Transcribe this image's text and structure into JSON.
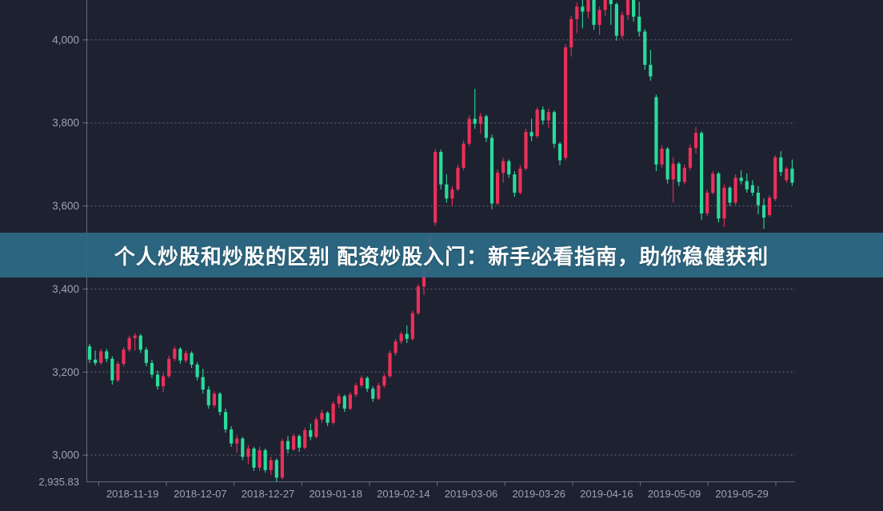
{
  "banner": {
    "title": "个人炒股和炒股的区别 配资炒股入门：新手必看指南，助你稳健获利"
  },
  "colors": {
    "background": "#1e2130",
    "banner_background": "#2d6a85",
    "bull_red": "#ea3059",
    "bear_green": "#2bdb9b",
    "grid_line": "#c6cde0",
    "axis_line": "#aab2c8",
    "axis_label": "#9aa3b8"
  },
  "chart_data": {
    "type": "candlestick",
    "title": "",
    "color_convention": "red = close above open (up), green = close below open (down)",
    "grid": "horizontal-dashed",
    "legend": "none",
    "ylim": [
      2935.83,
      4096
    ],
    "y_axis_ticks": [
      {
        "value": 4000,
        "label": "4,000"
      },
      {
        "value": 3800,
        "label": "3,800"
      },
      {
        "value": 3600,
        "label": "3,600"
      },
      {
        "value": 3400,
        "label": "3,400"
      },
      {
        "value": 3200,
        "label": "3,200"
      },
      {
        "value": 3000,
        "label": "3,000"
      }
    ],
    "y_axis_min_label": {
      "value": 2935.83,
      "label": "2,935.83"
    },
    "x_axis_labels": [
      "2018-11-19",
      "2018-12-07",
      "2018-12-27",
      "2019-01-18",
      "2019-02-14",
      "2019-03-06",
      "2019-03-26",
      "2019-04-16",
      "2019-05-09",
      "2019-05-29"
    ],
    "candles_ohlc": [
      [
        3262,
        3268,
        3222,
        3230
      ],
      [
        3230,
        3252,
        3216,
        3222
      ],
      [
        3222,
        3256,
        3218,
        3250
      ],
      [
        3250,
        3256,
        3224,
        3232
      ],
      [
        3232,
        3238,
        3170,
        3180
      ],
      [
        3180,
        3226,
        3176,
        3220
      ],
      [
        3220,
        3260,
        3214,
        3254
      ],
      [
        3254,
        3288,
        3248,
        3282
      ],
      [
        3282,
        3294,
        3252,
        3288
      ],
      [
        3288,
        3292,
        3246,
        3254
      ],
      [
        3254,
        3260,
        3214,
        3222
      ],
      [
        3222,
        3230,
        3186,
        3194
      ],
      [
        3194,
        3204,
        3158,
        3166
      ],
      [
        3166,
        3198,
        3152,
        3190
      ],
      [
        3190,
        3240,
        3186,
        3232
      ],
      [
        3232,
        3262,
        3226,
        3256
      ],
      [
        3256,
        3260,
        3220,
        3228
      ],
      [
        3228,
        3252,
        3222,
        3246
      ],
      [
        3246,
        3250,
        3210,
        3218
      ],
      [
        3218,
        3224,
        3180,
        3188
      ],
      [
        3188,
        3208,
        3148,
        3158
      ],
      [
        3158,
        3166,
        3112,
        3120
      ],
      [
        3120,
        3154,
        3114,
        3148
      ],
      [
        3148,
        3152,
        3096,
        3104
      ],
      [
        3104,
        3112,
        3054,
        3062
      ],
      [
        3062,
        3070,
        3020,
        3028
      ],
      [
        3028,
        3048,
        3006,
        3040
      ],
      [
        3040,
        3044,
        2988,
        2996
      ],
      [
        2996,
        3024,
        2978,
        3016
      ],
      [
        3016,
        3020,
        2962,
        2970
      ],
      [
        2970,
        3020,
        2962,
        3012
      ],
      [
        3012,
        3016,
        2958,
        2964
      ],
      [
        2964,
        2996,
        2952,
        2988
      ],
      [
        2988,
        2992,
        2936,
        2946
      ],
      [
        2946,
        3040,
        2942,
        3034
      ],
      [
        3034,
        3046,
        3004,
        3014
      ],
      [
        3014,
        3052,
        3010,
        3046
      ],
      [
        3046,
        3050,
        3008,
        3018
      ],
      [
        3018,
        3066,
        3014,
        3060
      ],
      [
        3060,
        3076,
        3036,
        3044
      ],
      [
        3044,
        3092,
        3040,
        3086
      ],
      [
        3086,
        3110,
        3078,
        3102
      ],
      [
        3102,
        3106,
        3070,
        3078
      ],
      [
        3078,
        3130,
        3074,
        3124
      ],
      [
        3124,
        3148,
        3114,
        3142
      ],
      [
        3142,
        3146,
        3104,
        3112
      ],
      [
        3112,
        3152,
        3108,
        3146
      ],
      [
        3146,
        3174,
        3140,
        3168
      ],
      [
        3168,
        3192,
        3162,
        3186
      ],
      [
        3186,
        3190,
        3152,
        3160
      ],
      [
        3160,
        3166,
        3128,
        3136
      ],
      [
        3136,
        3174,
        3132,
        3168
      ],
      [
        3168,
        3196,
        3162,
        3190
      ],
      [
        3190,
        3252,
        3186,
        3246
      ],
      [
        3246,
        3280,
        3240,
        3274
      ],
      [
        3274,
        3298,
        3268,
        3292
      ],
      [
        3292,
        3312,
        3270,
        3280
      ],
      [
        3280,
        3348,
        3276,
        3342
      ],
      [
        3342,
        3412,
        3338,
        3406
      ],
      [
        3406,
        3452,
        3386,
        3444
      ],
      [
        3444,
        3530,
        3440,
        3524
      ],
      [
        3560,
        3738,
        3552,
        3730
      ],
      [
        3730,
        3736,
        3640,
        3652
      ],
      [
        3652,
        3676,
        3608,
        3618
      ],
      [
        3618,
        3648,
        3600,
        3640
      ],
      [
        3640,
        3700,
        3636,
        3692
      ],
      [
        3692,
        3758,
        3686,
        3750
      ],
      [
        3750,
        3818,
        3744,
        3810
      ],
      [
        3810,
        3882,
        3786,
        3798
      ],
      [
        3798,
        3824,
        3774,
        3816
      ],
      [
        3816,
        3820,
        3754,
        3764
      ],
      [
        3764,
        3772,
        3592,
        3606
      ],
      [
        3606,
        3688,
        3602,
        3680
      ],
      [
        3680,
        3716,
        3656,
        3708
      ],
      [
        3708,
        3712,
        3668,
        3676
      ],
      [
        3676,
        3684,
        3622,
        3632
      ],
      [
        3632,
        3698,
        3628,
        3690
      ],
      [
        3690,
        3786,
        3686,
        3778
      ],
      [
        3778,
        3810,
        3756,
        3768
      ],
      [
        3768,
        3838,
        3764,
        3832
      ],
      [
        3832,
        3840,
        3796,
        3806
      ],
      [
        3806,
        3834,
        3788,
        3826
      ],
      [
        3826,
        3830,
        3740,
        3750
      ],
      [
        3750,
        3754,
        3698,
        3710
      ],
      [
        3716,
        3990,
        3710,
        3982
      ],
      [
        3982,
        4058,
        3960,
        4050
      ],
      [
        4050,
        4090,
        4016,
        4080
      ],
      [
        4080,
        4098,
        4028,
        4068
      ],
      [
        4068,
        4112,
        4052,
        4104
      ],
      [
        4104,
        4110,
        4024,
        4036
      ],
      [
        4036,
        4080,
        4012,
        4072
      ],
      [
        4072,
        4108,
        4058,
        4100
      ],
      [
        4100,
        4112,
        4036,
        4086
      ],
      [
        4086,
        4090,
        3998,
        4010
      ],
      [
        4010,
        4068,
        4002,
        4060
      ],
      [
        4060,
        4108,
        4048,
        4098
      ],
      [
        4098,
        4112,
        4044,
        4056
      ],
      [
        4056,
        4092,
        4008,
        4020
      ],
      [
        4020,
        4026,
        3928,
        3940
      ],
      [
        3940,
        3976,
        3902,
        3912
      ],
      [
        3862,
        3868,
        3684,
        3700
      ],
      [
        3700,
        3746,
        3692,
        3738
      ],
      [
        3738,
        3742,
        3654,
        3664
      ],
      [
        3664,
        3718,
        3608,
        3702
      ],
      [
        3702,
        3706,
        3648,
        3658
      ],
      [
        3658,
        3700,
        3652,
        3692
      ],
      [
        3692,
        3748,
        3686,
        3740
      ],
      [
        3740,
        3790,
        3726,
        3776
      ],
      [
        3776,
        3780,
        3566,
        3582
      ],
      [
        3582,
        3640,
        3576,
        3632
      ],
      [
        3632,
        3684,
        3628,
        3678
      ],
      [
        3678,
        3682,
        3560,
        3570
      ],
      [
        3570,
        3652,
        3550,
        3644
      ],
      [
        3644,
        3648,
        3600,
        3608
      ],
      [
        3608,
        3676,
        3602,
        3668
      ],
      [
        3668,
        3686,
        3652,
        3660
      ],
      [
        3660,
        3678,
        3632,
        3640
      ],
      [
        3650,
        3662,
        3624,
        3632
      ],
      [
        3632,
        3648,
        3580,
        3602
      ],
      [
        3602,
        3618,
        3545,
        3572
      ],
      [
        3578,
        3626,
        3574,
        3620
      ],
      [
        3617,
        3722,
        3612,
        3717
      ],
      [
        3717,
        3732,
        3672,
        3682
      ],
      [
        3662,
        3694,
        3656,
        3690
      ],
      [
        3690,
        3712,
        3648,
        3656
      ]
    ]
  }
}
